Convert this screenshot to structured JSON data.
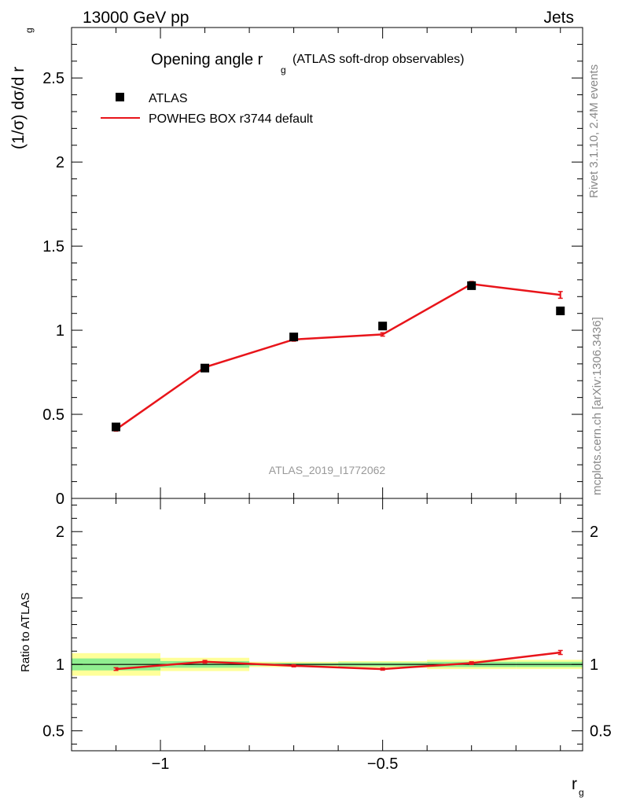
{
  "header": {
    "left_label": "13000 GeV pp",
    "right_label": "Jets"
  },
  "side_text": {
    "rivet": "Rivet 3.1.10,  2.4M events",
    "mcplots": "mcplots.cern.ch [arXiv:1306.3436]"
  },
  "reference_label": "ATLAS_2019_I1772062",
  "colors": {
    "mc_line": "#e8141a",
    "band_inner": "#90ee90",
    "band_outer": "#ffff99",
    "data_marker": "#000000"
  },
  "chart_data": [
    {
      "type": "scatter",
      "title_main": "Opening angle r",
      "title_sub": "g",
      "title_extra": "(ATLAS soft-drop observables)",
      "ylabel": "(1/σ) dσ/d r",
      "ylabel_sub": "g",
      "xlim": [
        -1.2,
        -0.05
      ],
      "ylim": [
        0,
        2.8
      ],
      "ytick_labels": [
        "0",
        "0.5",
        "1",
        "1.5",
        "2",
        "2.5"
      ],
      "yticks": [
        0,
        0.5,
        1,
        1.5,
        2,
        2.5
      ],
      "legend_position": "top-left",
      "series": [
        {
          "name": "ATLAS",
          "style": "markers",
          "x": [
            -1.1,
            -0.9,
            -0.7,
            -0.5,
            -0.3,
            -0.1
          ],
          "y": [
            0.425,
            0.775,
            0.96,
            1.025,
            1.265,
            1.115
          ]
        },
        {
          "name": "POWHEG BOX r3744 default",
          "style": "line",
          "x": [
            -1.1,
            -0.9,
            -0.7,
            -0.5,
            -0.3,
            -0.1
          ],
          "y": [
            0.41,
            0.78,
            0.945,
            0.975,
            1.275,
            1.21
          ],
          "err": [
            0.01,
            0.012,
            0.01,
            0.01,
            0.015,
            0.02
          ]
        }
      ]
    },
    {
      "type": "line",
      "ylabel": "Ratio to ATLAS",
      "xlabel": "r",
      "xlabel_sub": "g",
      "xlim": [
        -1.2,
        -0.05
      ],
      "ylim": [
        0.35,
        2.25
      ],
      "yticks": [
        0.5,
        1,
        2
      ],
      "ytick_labels": [
        "0.5",
        "1",
        "2"
      ],
      "xticks": [
        -1,
        -0.5
      ],
      "xtick_labels": [
        "−1",
        "−0.5"
      ],
      "bins": [
        [
          -1.2,
          -1.0
        ],
        [
          -1.0,
          -0.8
        ],
        [
          -0.8,
          -0.6
        ],
        [
          -0.6,
          -0.4
        ],
        [
          -0.4,
          -0.2
        ],
        [
          -0.2,
          -0.05
        ]
      ],
      "band_outer": [
        [
          0.915,
          1.085
        ],
        [
          0.95,
          1.05
        ],
        [
          0.98,
          1.02
        ],
        [
          0.975,
          1.025
        ],
        [
          0.965,
          1.035
        ],
        [
          0.965,
          1.035
        ]
      ],
      "band_inner": [
        [
          0.955,
          1.045
        ],
        [
          0.975,
          1.025
        ],
        [
          0.99,
          1.01
        ],
        [
          0.985,
          1.015
        ],
        [
          0.98,
          1.02
        ],
        [
          0.98,
          1.02
        ]
      ],
      "series": [
        {
          "name": "POWHEG BOX r3744 default",
          "x": [
            -1.1,
            -0.9,
            -0.7,
            -0.5,
            -0.3,
            -0.1
          ],
          "y": [
            0.965,
            1.02,
            0.99,
            0.965,
            1.01,
            1.09
          ],
          "err": [
            0.01,
            0.01,
            0.008,
            0.008,
            0.01,
            0.015
          ]
        }
      ]
    }
  ]
}
